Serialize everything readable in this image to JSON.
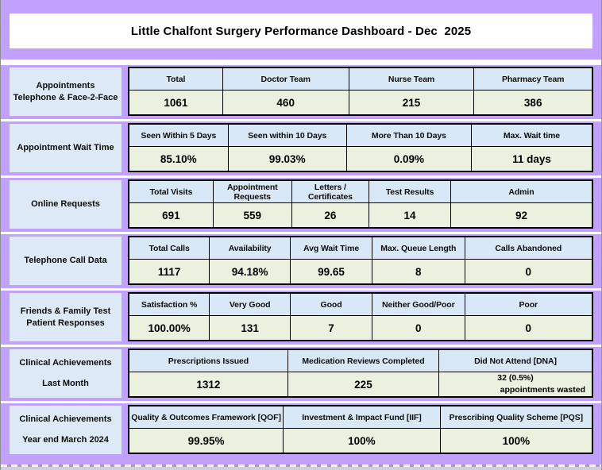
{
  "title": "Little Chalfont Surgery Performance Dashboard - Dec  2025",
  "colors": {
    "page_background": "#c1a0fe",
    "title_background": "#ffffff",
    "label_box": "#dde9f6",
    "table_header": "#d9e8f6",
    "table_value": "#ebf1de",
    "table_border": "#000000"
  },
  "sections": [
    {
      "label_lines": [
        "Appointments",
        "Telephone & Face-2-Face"
      ],
      "cells": [
        {
          "header": "Total",
          "value": "1061"
        },
        {
          "header": "Doctor Team",
          "value": "460"
        },
        {
          "header": "Nurse Team",
          "value": "215"
        },
        {
          "header": "Pharmacy Team",
          "value": "386"
        }
      ]
    },
    {
      "label_lines": [
        "Appointment Wait Time"
      ],
      "cells": [
        {
          "header": "Seen Within 5 Days",
          "value": "85.10%"
        },
        {
          "header": "Seen within 10 Days",
          "value": "99.03%"
        },
        {
          "header": "More Than 10 Days",
          "value": "0.09%"
        },
        {
          "header": "Max. Wait time",
          "value": "11 days"
        }
      ]
    },
    {
      "label_lines": [
        "Online Requests"
      ],
      "cells": [
        {
          "header": "Total Visits",
          "value": "691"
        },
        {
          "header": "Appointment Requests",
          "value": "559"
        },
        {
          "header": "Letters / Certificates",
          "value": "26"
        },
        {
          "header": "Test Results",
          "value": "14"
        },
        {
          "header": "Admin",
          "value": "92"
        }
      ]
    },
    {
      "label_lines": [
        "Telephone Call Data"
      ],
      "cells": [
        {
          "header": "Total Calls",
          "value": "1117"
        },
        {
          "header": "Availability",
          "value": "94.18%"
        },
        {
          "header": "Avg Wait Time",
          "value": "99.65"
        },
        {
          "header": "Max. Queue Length",
          "value": "8"
        },
        {
          "header": "Calls Abandoned",
          "value": "0"
        }
      ]
    },
    {
      "label_lines": [
        "Friends & Family Test",
        "Patient Responses"
      ],
      "cells": [
        {
          "header": "Satisfaction %",
          "value": "100.00%"
        },
        {
          "header": "Very Good",
          "value": "131"
        },
        {
          "header": "Good",
          "value": "7"
        },
        {
          "header": "Neither Good/Poor",
          "value": "0"
        },
        {
          "header": "Poor",
          "value": "0"
        }
      ]
    },
    {
      "label_lines": [
        "Clinical Achievements",
        "Last Month"
      ],
      "cells": [
        {
          "header": "Prescriptions Issued",
          "value": "1312"
        },
        {
          "header": "Medication Reviews Completed",
          "value": "225"
        },
        {
          "header": "Did Not Attend [DNA]",
          "value_lines": [
            "32 (0.5%)",
            "appointments wasted"
          ]
        }
      ]
    },
    {
      "label_lines": [
        "Clinical Achievements",
        "Year end March 2024"
      ],
      "cells": [
        {
          "header": "Quality & Outcomes Framework [QOF]",
          "value": "99.95%"
        },
        {
          "header": "Investment & Impact Fund [IIF]",
          "value": "100%"
        },
        {
          "header": "Prescribing Quality Scheme [PQS]",
          "value": "100%"
        }
      ]
    }
  ]
}
